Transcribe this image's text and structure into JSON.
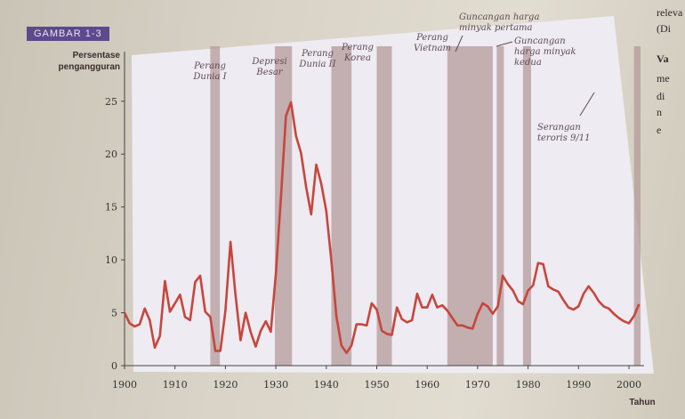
{
  "figure_tag": "GAMBAR 1-3",
  "side_text": [
    "releva",
    "(Di",
    "Va",
    "me",
    "di",
    "n",
    "e"
  ],
  "chart_data": {
    "type": "line",
    "ylabel_lines": [
      "Persentase",
      "pengangguran"
    ],
    "xlabel": "Tahun",
    "xlim": [
      1900,
      2003
    ],
    "ylim": [
      0,
      27
    ],
    "x_ticks": [
      1900,
      1910,
      1920,
      1930,
      1940,
      1950,
      1960,
      1970,
      1980,
      1990,
      2000
    ],
    "y_ticks": [
      0,
      5,
      10,
      15,
      20,
      25
    ],
    "grid": false,
    "series_color": "#c7463c",
    "band_color": "#b49a9a",
    "shaded_periods": [
      {
        "start": 1917,
        "end": 1918.9,
        "label": [
          "Perang",
          "Dunia I"
        ]
      },
      {
        "start": 1929.8,
        "end": 1933.2,
        "label": [
          "Depresi",
          "Besar"
        ]
      },
      {
        "start": 1941,
        "end": 1945,
        "label": [
          "Perang",
          "Dunia II"
        ]
      },
      {
        "start": 1950,
        "end": 1953,
        "label": [
          "Perang",
          "Korea"
        ]
      },
      {
        "start": 1964,
        "end": 1973,
        "label": [
          "Perang",
          "Vietnam"
        ]
      },
      {
        "start": 1973.8,
        "end": 1975.2,
        "label": [
          "Guncangan harga",
          "minyak pertama"
        ]
      },
      {
        "start": 1979,
        "end": 1980.6,
        "label": [
          "Guncangan",
          "harga minyak",
          "kedua"
        ]
      },
      {
        "start": 2001,
        "end": 2002.3,
        "label": [
          "Serangan",
          "teroris 9/11"
        ]
      }
    ],
    "x": [
      1900,
      1901,
      1902,
      1903,
      1904,
      1905,
      1906,
      1907,
      1908,
      1909,
      1910,
      1911,
      1912,
      1913,
      1914,
      1915,
      1916,
      1917,
      1918,
      1919,
      1920,
      1921,
      1922,
      1923,
      1924,
      1925,
      1926,
      1927,
      1928,
      1929,
      1930,
      1931,
      1932,
      1933,
      1934,
      1935,
      1936,
      1937,
      1938,
      1939,
      1940,
      1941,
      1942,
      1943,
      1944,
      1945,
      1946,
      1947,
      1948,
      1949,
      1950,
      1951,
      1952,
      1953,
      1954,
      1955,
      1956,
      1957,
      1958,
      1959,
      1960,
      1961,
      1962,
      1963,
      1964,
      1965,
      1966,
      1967,
      1968,
      1969,
      1970,
      1971,
      1972,
      1973,
      1974,
      1975,
      1976,
      1977,
      1978,
      1979,
      1980,
      1981,
      1982,
      1983,
      1984,
      1985,
      1986,
      1987,
      1988,
      1989,
      1990,
      1991,
      1992,
      1993,
      1994,
      1995,
      1996,
      1997,
      1998,
      1999,
      2000,
      2001,
      2002
    ],
    "values": [
      5.0,
      4.0,
      3.7,
      3.9,
      5.4,
      4.3,
      1.7,
      2.8,
      8.0,
      5.1,
      5.9,
      6.7,
      4.6,
      4.3,
      7.9,
      8.5,
      5.1,
      4.6,
      1.4,
      1.4,
      5.2,
      11.7,
      6.7,
      2.4,
      5.0,
      3.2,
      1.8,
      3.3,
      4.2,
      3.2,
      8.7,
      15.9,
      23.6,
      24.9,
      21.7,
      20.1,
      16.9,
      14.3,
      19.0,
      17.2,
      14.6,
      9.9,
      4.7,
      1.9,
      1.2,
      1.9,
      3.9,
      3.9,
      3.8,
      5.9,
      5.3,
      3.3,
      3.0,
      2.9,
      5.5,
      4.4,
      4.1,
      4.3,
      6.8,
      5.5,
      5.5,
      6.7,
      5.5,
      5.7,
      5.2,
      4.5,
      3.8,
      3.8,
      3.6,
      3.5,
      4.9,
      5.9,
      5.6,
      4.9,
      5.6,
      8.5,
      7.7,
      7.1,
      6.1,
      5.8,
      7.1,
      7.6,
      9.7,
      9.6,
      7.5,
      7.2,
      7.0,
      6.2,
      5.5,
      5.3,
      5.6,
      6.8,
      7.5,
      6.9,
      6.1,
      5.6,
      5.4,
      4.9,
      4.5,
      4.2,
      4.0,
      4.7,
      5.8
    ]
  }
}
